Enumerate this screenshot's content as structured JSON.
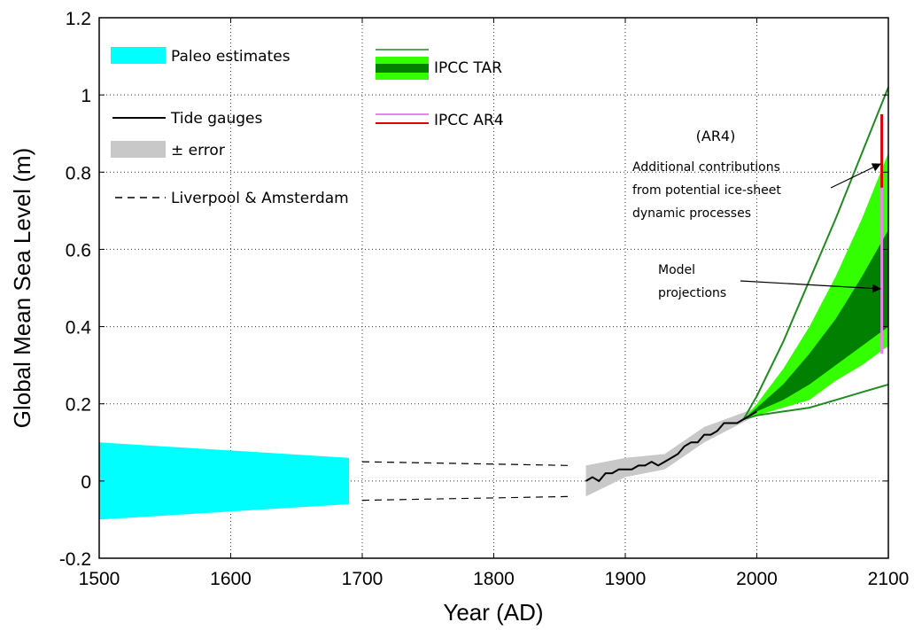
{
  "chart_data": {
    "type": "line",
    "title": "",
    "xlabel": "Year (AD)",
    "ylabel": "Global Mean Sea Level (m)",
    "xlim": [
      1500,
      2100
    ],
    "ylim": [
      -0.2,
      1.2
    ],
    "xticks": [
      1500,
      1600,
      1700,
      1800,
      1900,
      2000,
      2100
    ],
    "yticks": [
      -0.2,
      0,
      0.2,
      0.4,
      0.6,
      0.8,
      1,
      1.2
    ],
    "ytick_labels": [
      "-0.2",
      "0",
      "0.2",
      "0.4",
      "0.6",
      "0.8",
      "1",
      "1.2"
    ],
    "grid": true,
    "legend": {
      "paleo": "Paleo estimates",
      "tide": "Tide gauges",
      "error": "± error",
      "liverpool": "Liverpool & Amsterdam",
      "tar": "IPCC TAR",
      "ar4": "IPCC AR4"
    },
    "annotations": {
      "ar4_heading": "(AR4)",
      "ice_line1": "Additional contributions",
      "ice_line2": "from potential ice-sheet",
      "ice_line3": "dynamic processes",
      "model_line1": "Model",
      "model_line2": "projections"
    },
    "colors": {
      "paleo": "#00ffff",
      "tide": "#000000",
      "error": "#c8c8c8",
      "tar_light": "#33ff00",
      "tar_dark": "#007f00",
      "tar_line": "#1f8c1f",
      "ar4_model": "#ee82ee",
      "ar4_ice": "#e00000",
      "grid": "#333333"
    },
    "series": [
      {
        "name": "Paleo estimates",
        "type": "band",
        "x": [
          1500,
          1690
        ],
        "upper": [
          0.1,
          0.06
        ],
        "lower": [
          -0.1,
          -0.06
        ]
      },
      {
        "name": "Liverpool & Amsterdam",
        "type": "dashed_bounds",
        "x": [
          1700,
          1860
        ],
        "upper": [
          0.05,
          0.04
        ],
        "lower": [
          -0.05,
          -0.04
        ]
      },
      {
        "name": "Tide gauges",
        "type": "line",
        "x": [
          1870,
          1875,
          1880,
          1885,
          1890,
          1895,
          1900,
          1905,
          1910,
          1915,
          1920,
          1925,
          1930,
          1935,
          1940,
          1945,
          1950,
          1955,
          1960,
          1965,
          1970,
          1975,
          1980,
          1985,
          1990,
          1995,
          2000
        ],
        "y": [
          0.0,
          0.01,
          0.0,
          0.02,
          0.02,
          0.03,
          0.03,
          0.03,
          0.04,
          0.04,
          0.05,
          0.04,
          0.05,
          0.06,
          0.07,
          0.09,
          0.1,
          0.1,
          0.12,
          0.12,
          0.13,
          0.15,
          0.15,
          0.15,
          0.16,
          0.17,
          0.18
        ]
      },
      {
        "name": "± error",
        "type": "band",
        "x": [
          1870,
          1900,
          1930,
          1960,
          2000
        ],
        "upper": [
          0.04,
          0.06,
          0.07,
          0.14,
          0.19
        ],
        "lower": [
          -0.04,
          0.01,
          0.03,
          0.1,
          0.17
        ]
      },
      {
        "name": "IPCC TAR",
        "type": "projection",
        "x": [
          1990,
          2000,
          2020,
          2040,
          2060,
          2080,
          2100
        ],
        "outer_upper": [
          0.16,
          0.22,
          0.36,
          0.52,
          0.68,
          0.85,
          1.02
        ],
        "light_upper": [
          0.16,
          0.2,
          0.29,
          0.4,
          0.53,
          0.68,
          0.85
        ],
        "dark_upper": [
          0.16,
          0.19,
          0.25,
          0.33,
          0.42,
          0.53,
          0.65
        ],
        "dark_lower": [
          0.16,
          0.18,
          0.21,
          0.25,
          0.3,
          0.35,
          0.4
        ],
        "light_lower": [
          0.16,
          0.17,
          0.19,
          0.21,
          0.26,
          0.3,
          0.35
        ],
        "outer_lower": [
          0.16,
          0.17,
          0.18,
          0.19,
          0.21,
          0.23,
          0.25
        ]
      },
      {
        "name": "IPCC AR4",
        "type": "vertical_bars",
        "x": 2095,
        "model_range": [
          0.33,
          0.76
        ],
        "ice_range": [
          0.76,
          0.95
        ]
      }
    ]
  }
}
